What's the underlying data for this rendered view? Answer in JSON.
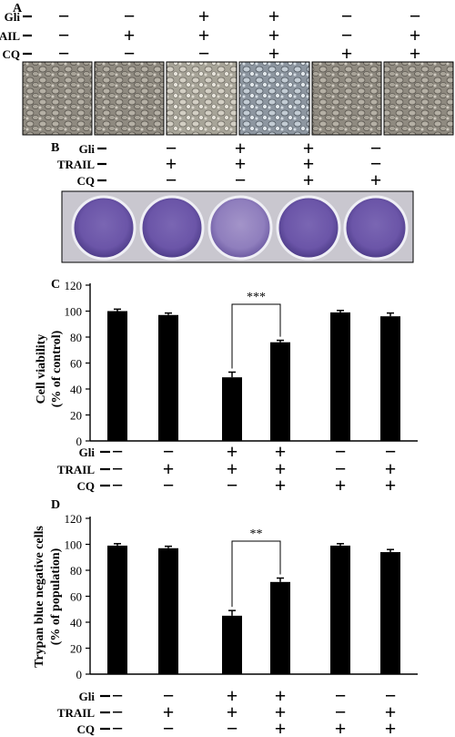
{
  "panels": {
    "A": {
      "letter": "A",
      "row_labels": [
        "Gli",
        "TRAIL",
        "CQ"
      ],
      "conditions": [
        [
          "−",
          "+",
          "−"
        ],
        [
          "−",
          "−",
          "−"
        ],
        [
          "+",
          "+",
          "−"
        ],
        [
          "+",
          "+",
          "+"
        ],
        [
          "−",
          "−",
          "+"
        ],
        [
          "−",
          "+",
          "+"
        ]
      ]
    },
    "B": {
      "letter": "B",
      "row_labels": [
        "Gli",
        "TRAIL",
        "CQ"
      ],
      "conditions": [
        [
          "−",
          "+",
          "−"
        ],
        [
          "+",
          "+",
          "−"
        ],
        [
          "+",
          "+",
          "+"
        ],
        [
          "−",
          "−",
          "+"
        ]
      ]
    }
  },
  "chart_data": [
    {
      "letter": "C",
      "type": "bar",
      "ylabel": "Cell viability",
      "ylabel2": "(% of control)",
      "ylim": [
        0,
        120
      ],
      "yticks": [
        "0",
        "20",
        "40",
        "60",
        "80",
        "100",
        "120"
      ],
      "values": [
        100,
        97,
        49,
        76,
        99,
        96
      ],
      "errors": [
        1.5,
        1.5,
        4,
        1.5,
        1.5,
        2.5
      ],
      "significance": {
        "label": "***",
        "from_bar": 2,
        "to_bar": 3
      },
      "row_labels": [
        "Gli",
        "TRAIL",
        "CQ"
      ],
      "conditions": [
        [
          "−",
          "−",
          "−"
        ],
        [
          "−",
          "+",
          "−"
        ],
        [
          "+",
          "+",
          "−"
        ],
        [
          "+",
          "+",
          "+"
        ],
        [
          "−",
          "−",
          "+"
        ],
        [
          "−",
          "+",
          "+"
        ]
      ]
    },
    {
      "letter": "D",
      "type": "bar",
      "ylabel": "Trypan blue negative cells",
      "ylabel2": "(% of population)",
      "ylim": [
        0,
        120
      ],
      "yticks": [
        "0",
        "20",
        "40",
        "60",
        "80",
        "100",
        "120"
      ],
      "values": [
        99,
        97,
        45,
        71,
        99,
        94
      ],
      "errors": [
        1.5,
        1.5,
        4,
        3,
        1.5,
        2
      ],
      "significance": {
        "label": "**",
        "from_bar": 2,
        "to_bar": 3
      },
      "row_labels": [
        "Gli",
        "TRAIL",
        "CQ"
      ],
      "conditions": [
        [
          "−",
          "−",
          "−"
        ],
        [
          "−",
          "+",
          "−"
        ],
        [
          "+",
          "+",
          "−"
        ],
        [
          "+",
          "+",
          "+"
        ],
        [
          "−",
          "−",
          "+"
        ],
        [
          "−",
          "+",
          "+"
        ]
      ]
    }
  ]
}
